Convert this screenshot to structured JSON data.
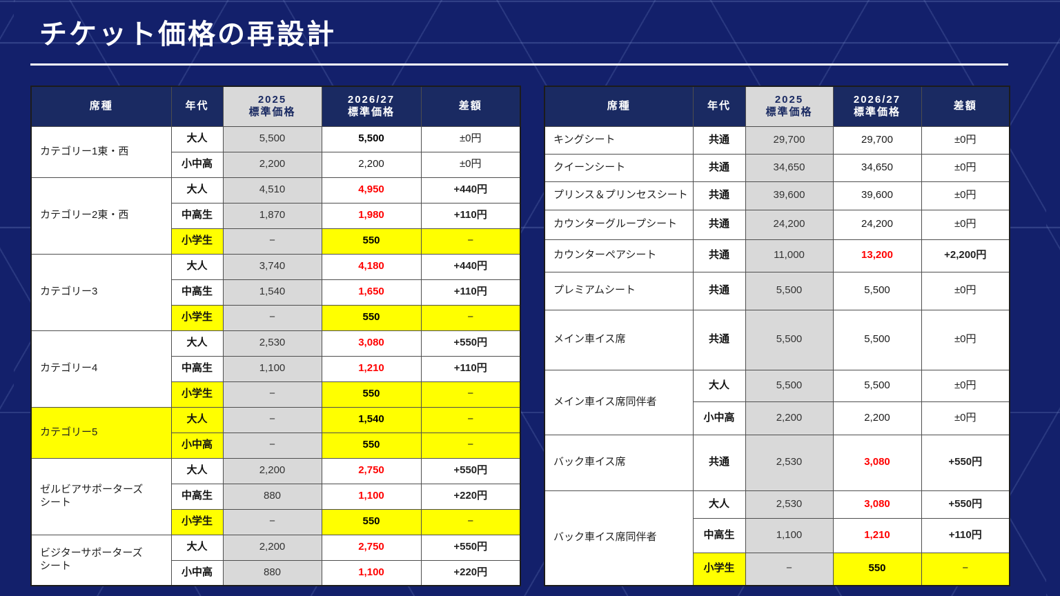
{
  "slide_title": "チケット価格の再設計",
  "colors": {
    "background_navy": "#13206b",
    "table_header_navy": "#1a2a62",
    "highlight_yellow": "#ffff00",
    "price_increase_red": "#ff0000",
    "col_2025_gray": "#d9d9d9"
  },
  "headers": {
    "seat": "席種",
    "age": "年代",
    "y2025_line1": "2025",
    "y2025_line2": "標準価格",
    "y2026_line1": "2026/27",
    "y2026_line2": "標準価格",
    "diff": "差額"
  },
  "left_table": {
    "groups": [
      {
        "seat": "カテゴリー1東・西",
        "rows": [
          {
            "age": "大人",
            "p2025": "5,500",
            "p2026": "5,500",
            "diff": "±0円",
            "bold2026": true
          },
          {
            "age": "小中高",
            "p2025": "2,200",
            "p2026": "2,200",
            "diff": "±0円"
          }
        ]
      },
      {
        "seat": "カテゴリー2東・西",
        "rows": [
          {
            "age": "大人",
            "p2025": "4,510",
            "p2026": "4,950",
            "diff": "+440円",
            "changed": true
          },
          {
            "age": "中高生",
            "p2025": "1,870",
            "p2026": "1,980",
            "diff": "+110円",
            "changed": true
          },
          {
            "age": "小学生",
            "p2025": "−",
            "p2026": "550",
            "diff": "−",
            "yellow": true
          }
        ]
      },
      {
        "seat": "カテゴリー3",
        "rows": [
          {
            "age": "大人",
            "p2025": "3,740",
            "p2026": "4,180",
            "diff": "+440円",
            "changed": true
          },
          {
            "age": "中高生",
            "p2025": "1,540",
            "p2026": "1,650",
            "diff": "+110円",
            "changed": true
          },
          {
            "age": "小学生",
            "p2025": "−",
            "p2026": "550",
            "diff": "−",
            "yellow": true
          }
        ]
      },
      {
        "seat": "カテゴリー4",
        "rows": [
          {
            "age": "大人",
            "p2025": "2,530",
            "p2026": "3,080",
            "diff": "+550円",
            "changed": true
          },
          {
            "age": "中高生",
            "p2025": "1,100",
            "p2026": "1,210",
            "diff": "+110円",
            "changed": true
          },
          {
            "age": "小学生",
            "p2025": "−",
            "p2026": "550",
            "diff": "−",
            "yellow": true
          }
        ]
      },
      {
        "seat": "カテゴリー5",
        "seat_yellow": true,
        "rows": [
          {
            "age": "大人",
            "p2025": "−",
            "p2026": "1,540",
            "diff": "−",
            "yellow": true
          },
          {
            "age": "小中高",
            "p2025": "−",
            "p2026": "550",
            "diff": "−",
            "yellow": true
          }
        ]
      },
      {
        "seat": "ゼルビアサポーターズ\nシート",
        "rows": [
          {
            "age": "大人",
            "p2025": "2,200",
            "p2026": "2,750",
            "diff": "+550円",
            "changed": true
          },
          {
            "age": "中高生",
            "p2025": "880",
            "p2026": "1,100",
            "diff": "+220円",
            "changed": true
          },
          {
            "age": "小学生",
            "p2025": "−",
            "p2026": "550",
            "diff": "−",
            "yellow": true
          }
        ]
      },
      {
        "seat": "ビジターサポーターズ\nシート",
        "rows": [
          {
            "age": "大人",
            "p2025": "2,200",
            "p2026": "2,750",
            "diff": "+550円",
            "changed": true
          },
          {
            "age": "小中高",
            "p2025": "880",
            "p2026": "1,100",
            "diff": "+220円",
            "changed": true
          }
        ]
      }
    ]
  },
  "right_table": {
    "groups": [
      {
        "seat": "キングシート",
        "rows": [
          {
            "age": "共通",
            "p2025": "29,700",
            "p2026": "29,700",
            "diff": "±0円"
          }
        ]
      },
      {
        "seat": "クイーンシート",
        "rows": [
          {
            "age": "共通",
            "p2025": "34,650",
            "p2026": "34,650",
            "diff": "±0円"
          }
        ]
      },
      {
        "seat": "プリンス＆プリンセスシート",
        "rows": [
          {
            "age": "共通",
            "p2025": "39,600",
            "p2026": "39,600",
            "diff": "±0円"
          }
        ]
      },
      {
        "seat": "カウンターグループシート",
        "rows": [
          {
            "age": "共通",
            "p2025": "24,200",
            "p2026": "24,200",
            "diff": "±0円"
          }
        ]
      },
      {
        "seat": "カウンターペアシート",
        "rows": [
          {
            "age": "共通",
            "p2025": "11,000",
            "p2026": "13,200",
            "diff": "+2,200円",
            "changed": true
          }
        ]
      },
      {
        "seat": "プレミアムシート",
        "rows": [
          {
            "age": "共通",
            "p2025": "5,500",
            "p2026": "5,500",
            "diff": "±0円"
          }
        ]
      },
      {
        "seat": "メイン車イス席",
        "rows": [
          {
            "age": "共通",
            "p2025": "5,500",
            "p2026": "5,500",
            "diff": "±0円"
          }
        ]
      },
      {
        "seat": "メイン車イス席同伴者",
        "rows": [
          {
            "age": "大人",
            "p2025": "5,500",
            "p2026": "5,500",
            "diff": "±0円"
          },
          {
            "age": "小中高",
            "p2025": "2,200",
            "p2026": "2,200",
            "diff": "±0円"
          }
        ]
      },
      {
        "seat": "バック車イス席",
        "rows": [
          {
            "age": "共通",
            "p2025": "2,530",
            "p2026": "3,080",
            "diff": "+550円",
            "changed": true
          }
        ]
      },
      {
        "seat": "バック車イス席同伴者",
        "rows": [
          {
            "age": "大人",
            "p2025": "2,530",
            "p2026": "3,080",
            "diff": "+550円",
            "changed": true
          },
          {
            "age": "中高生",
            "p2025": "1,100",
            "p2026": "1,210",
            "diff": "+110円",
            "changed": true
          },
          {
            "age": "小学生",
            "p2025": "−",
            "p2026": "550",
            "diff": "−",
            "yellow": true
          }
        ]
      }
    ]
  }
}
